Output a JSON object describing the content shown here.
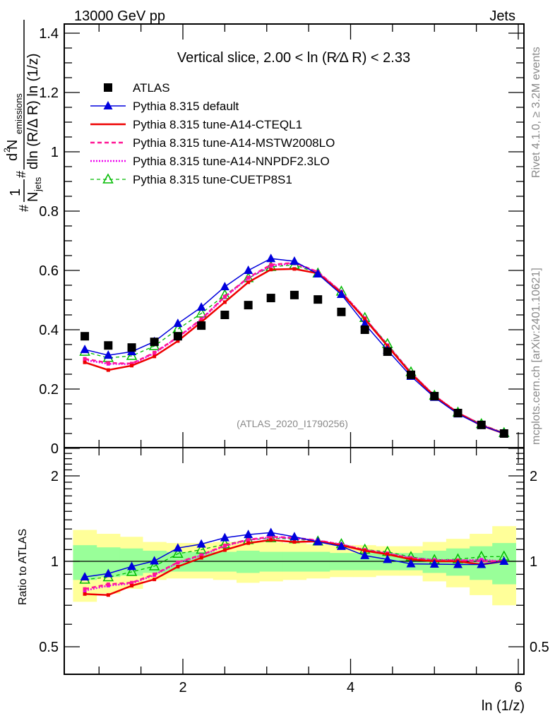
{
  "header": {
    "left_label": "13000 GeV pp",
    "right_label": "Jets"
  },
  "side_labels": {
    "rivet": "Rivet 4.1.0, ≥ 3.2M events",
    "mcplots": "mcplots.cern.ch [arXiv:2401.10621]"
  },
  "chart_data": [
    {
      "type": "line",
      "panel": "main",
      "title": "Vertical slice, 2.00 < ln (R∕Δ R) < 2.33",
      "annotation": "(ATLAS_2020_I1790256)",
      "xlabel": "ln (1/z)",
      "ylabel_parts": {
        "frac1_num": "1",
        "frac1_den": "N",
        "frac1_den_sub": "jets",
        "frac2_num": "d",
        "frac2_num_sup": "2",
        "frac2_num_main": " N",
        "frac2_num_sub": "emissions",
        "frac2_den": "dln (R/Δ R) ln (1/z)",
        "hash": "#"
      },
      "xlim": [
        0.6,
        6.08
      ],
      "ylim": [
        0,
        1.42
      ],
      "yticks": [
        0,
        0.2,
        0.4,
        0.6,
        0.8,
        1,
        1.2,
        1.4
      ],
      "ytick_labels": [
        "0",
        "0.2",
        "0.4",
        "0.6",
        "0.8",
        "1",
        "1.2",
        "1.4"
      ],
      "xticks": [
        2,
        4,
        6
      ],
      "xtick_labels": [
        "2",
        "4",
        "6"
      ],
      "legend_position": "top-left",
      "x": [
        0.83,
        1.11,
        1.39,
        1.66,
        1.94,
        2.22,
        2.5,
        2.78,
        3.05,
        3.33,
        3.61,
        3.89,
        4.17,
        4.44,
        4.72,
        5.0,
        5.28,
        5.56,
        5.83
      ],
      "bin_edges": [
        0.69,
        0.97,
        1.25,
        1.52,
        1.8,
        2.08,
        2.36,
        2.64,
        2.91,
        3.19,
        3.47,
        3.75,
        4.03,
        4.3,
        4.58,
        4.86,
        5.14,
        5.42,
        5.69,
        5.97
      ],
      "series": [
        {
          "name": "ATLAS",
          "style": "data",
          "color": "#000000",
          "marker": "square",
          "values": [
            0.378,
            0.347,
            0.34,
            0.359,
            0.378,
            0.414,
            0.45,
            0.483,
            0.507,
            0.517,
            0.502,
            0.46,
            0.4,
            0.326,
            0.248,
            0.176,
            0.119,
            0.079,
            0.05
          ],
          "stat_band": [
            [
              0.86,
              1.14
            ],
            [
              0.88,
              1.12
            ],
            [
              0.89,
              1.11
            ],
            [
              0.91,
              1.09
            ],
            [
              0.92,
              1.08
            ],
            [
              0.92,
              1.08
            ],
            [
              0.92,
              1.08
            ],
            [
              0.91,
              1.09
            ],
            [
              0.92,
              1.08
            ],
            [
              0.92,
              1.08
            ],
            [
              0.92,
              1.08
            ],
            [
              0.93,
              1.07
            ],
            [
              0.93,
              1.07
            ],
            [
              0.93,
              1.07
            ],
            [
              0.93,
              1.07
            ],
            [
              0.91,
              1.09
            ],
            [
              0.89,
              1.11
            ],
            [
              0.86,
              1.13
            ],
            [
              0.83,
              1.16
            ]
          ],
          "total_band": [
            [
              0.72,
              1.29
            ],
            [
              0.77,
              1.25
            ],
            [
              0.8,
              1.22
            ],
            [
              0.86,
              1.17
            ],
            [
              0.87,
              1.16
            ],
            [
              0.87,
              1.16
            ],
            [
              0.86,
              1.17
            ],
            [
              0.84,
              1.18
            ],
            [
              0.85,
              1.17
            ],
            [
              0.86,
              1.16
            ],
            [
              0.87,
              1.15
            ],
            [
              0.88,
              1.14
            ],
            [
              0.88,
              1.14
            ],
            [
              0.89,
              1.13
            ],
            [
              0.89,
              1.13
            ],
            [
              0.85,
              1.17
            ],
            [
              0.81,
              1.2
            ],
            [
              0.76,
              1.25
            ],
            [
              0.7,
              1.33
            ]
          ]
        },
        {
          "name": "Pythia 8.315 default",
          "style": "solid",
          "color": "#0000dd",
          "marker": "triangle-filled",
          "values": [
            0.333,
            0.314,
            0.326,
            0.36,
            0.421,
            0.476,
            0.545,
            0.6,
            0.64,
            0.631,
            0.588,
            0.519,
            0.419,
            0.331,
            0.243,
            0.172,
            0.116,
            0.077,
            0.05
          ]
        },
        {
          "name": "Pythia 8.315 tune-A14-CTEQL1",
          "style": "solid-thick",
          "color": "#ee0000",
          "marker": "small-square",
          "values": [
            0.29,
            0.264,
            0.279,
            0.31,
            0.362,
            0.426,
            0.493,
            0.56,
            0.603,
            0.605,
            0.59,
            0.524,
            0.436,
            0.345,
            0.252,
            0.176,
            0.119,
            0.077,
            0.05
          ]
        },
        {
          "name": "Pythia 8.315 tune-A14-MSTW2008LO",
          "style": "dashed",
          "color": "#ff1493",
          "marker": "small-square",
          "values": [
            0.302,
            0.288,
            0.286,
            0.323,
            0.375,
            0.436,
            0.512,
            0.576,
            0.619,
            0.626,
            0.595,
            0.527,
            0.438,
            0.347,
            0.254,
            0.177,
            0.12,
            0.079,
            0.05
          ]
        },
        {
          "name": "Pythia 8.315 tune-A14-NNPDF2.3LO",
          "style": "dotted",
          "color": "#ee00ee",
          "marker": "small-square",
          "values": [
            0.298,
            0.285,
            0.284,
            0.321,
            0.374,
            0.434,
            0.51,
            0.574,
            0.616,
            0.624,
            0.594,
            0.528,
            0.439,
            0.348,
            0.255,
            0.178,
            0.12,
            0.08,
            0.05
          ]
        },
        {
          "name": "Pythia 8.315 tune-CUETP8S1",
          "style": "dashed-thin",
          "color": "#00bb00",
          "marker": "triangle-open",
          "values": [
            0.326,
            0.305,
            0.312,
            0.345,
            0.402,
            0.455,
            0.517,
            0.574,
            0.612,
            0.619,
            0.59,
            0.529,
            0.44,
            0.352,
            0.257,
            0.178,
            0.121,
            0.082,
            0.052
          ]
        }
      ]
    },
    {
      "type": "line",
      "panel": "ratio",
      "ylabel": "Ratio to ATLAS",
      "xlabel": "ln (1/z)",
      "yscale": "log",
      "ylim": [
        0.4,
        2.45
      ],
      "yticks": [
        0.5,
        1,
        2
      ],
      "ytick_labels": [
        "0.5",
        "1",
        "2"
      ],
      "xticks": [
        2,
        4,
        6
      ],
      "xtick_labels": [
        "2",
        "4",
        "6"
      ],
      "reference": 1,
      "band_colors": {
        "stat": "#99ff99",
        "total": "#ffff99"
      },
      "note": "ratios = model values / ATLAS values"
    }
  ]
}
